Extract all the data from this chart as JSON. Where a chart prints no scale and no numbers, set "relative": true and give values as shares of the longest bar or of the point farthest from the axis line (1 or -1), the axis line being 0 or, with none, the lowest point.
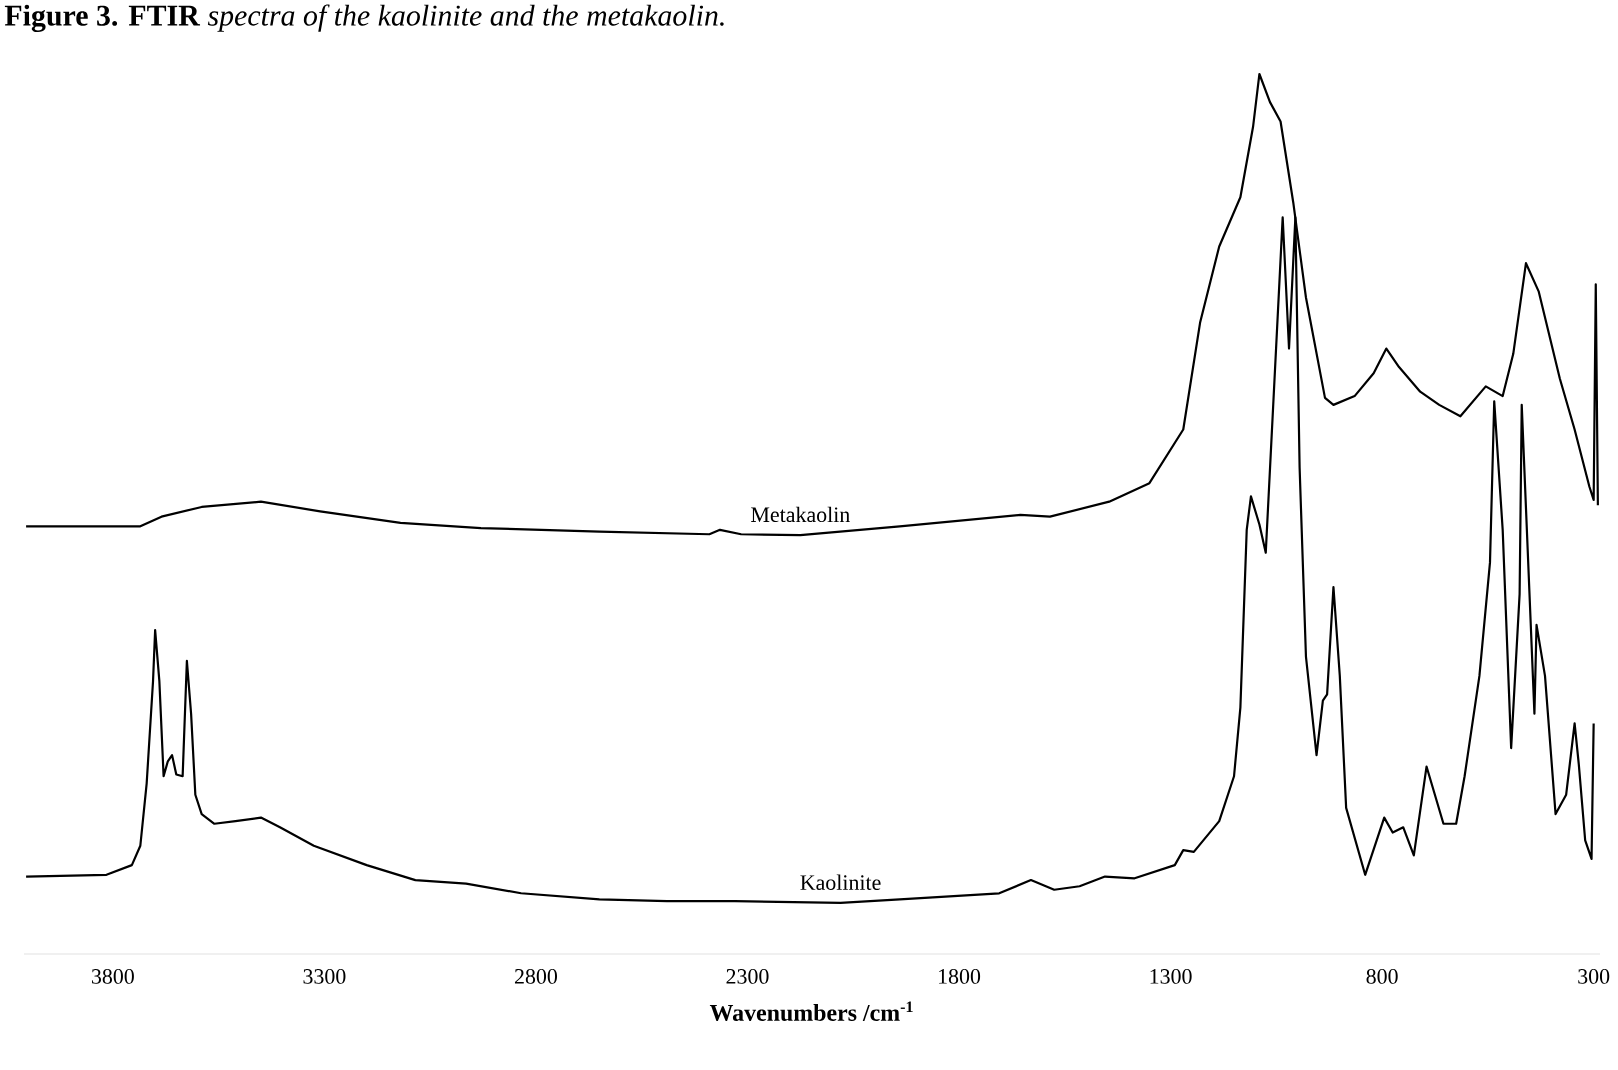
{
  "chart_data": {
    "type": "line",
    "title": "**Figure 3. FTIR** *spectra of the kaolinite and the metakaolin.*",
    "xlabel": "Wavenumbers /cm$^{-1}$",
    "xlim": [
      4010,
      285
    ],
    "xticks": [
      3800,
      3300,
      2800,
      2300,
      1800,
      1300,
      800,
      300
    ],
    "relative": true,
    "series": [
      {
        "name": "Metakaolin",
        "color": "#000000",
        "x": [
          4005,
          3735,
          3685,
          3590,
          3450,
          3310,
          3120,
          2930,
          2650,
          2390,
          2365,
          2315,
          2175,
          1940,
          1655,
          1585,
          1445,
          1350,
          1270,
          1230,
          1185,
          1135,
          1105,
          1090,
          1065,
          1040,
          1010,
          980,
          935,
          915,
          865,
          820,
          790,
          760,
          710,
          665,
          615,
          555,
          515,
          490,
          460,
          430,
          380,
          345,
          310,
          300,
          295,
          290
        ],
        "values": [
          0.486,
          0.486,
          0.497,
          0.508,
          0.514,
          0.503,
          0.49,
          0.484,
          0.48,
          0.477,
          0.482,
          0.477,
          0.476,
          0.486,
          0.499,
          0.497,
          0.514,
          0.535,
          0.596,
          0.718,
          0.804,
          0.86,
          0.94,
          1.0,
          0.968,
          0.946,
          0.854,
          0.746,
          0.632,
          0.624,
          0.634,
          0.66,
          0.688,
          0.667,
          0.639,
          0.624,
          0.611,
          0.645,
          0.634,
          0.682,
          0.785,
          0.753,
          0.654,
          0.596,
          0.531,
          0.516,
          0.761,
          0.51
        ]
      },
      {
        "name": "Kaolinite",
        "color": "#000000",
        "x": [
          4005,
          3815,
          3755,
          3735,
          3720,
          3705,
          3700,
          3690,
          3680,
          3670,
          3660,
          3650,
          3635,
          3625,
          3615,
          3605,
          3590,
          3560,
          3510,
          3450,
          3405,
          3325,
          3200,
          3085,
          2965,
          2835,
          2650,
          2490,
          2330,
          2080,
          1940,
          1705,
          1630,
          1575,
          1515,
          1455,
          1385,
          1290,
          1270,
          1245,
          1185,
          1150,
          1135,
          1120,
          1110,
          1090,
          1075,
          1035,
          1020,
          1005,
          995,
          980,
          955,
          940,
          930,
          915,
          900,
          885,
          840,
          795,
          775,
          750,
          725,
          695,
          655,
          625,
          605,
          570,
          545,
          535,
          515,
          495,
          475,
          470,
          440,
          435,
          415,
          390,
          365,
          345,
          335,
          320,
          305,
          300
        ],
        "values": [
          0.088,
          0.09,
          0.101,
          0.123,
          0.194,
          0.31,
          0.368,
          0.31,
          0.202,
          0.219,
          0.226,
          0.204,
          0.202,
          0.333,
          0.273,
          0.181,
          0.159,
          0.148,
          0.151,
          0.155,
          0.144,
          0.123,
          0.101,
          0.084,
          0.08,
          0.069,
          0.062,
          0.06,
          0.06,
          0.058,
          0.062,
          0.069,
          0.084,
          0.073,
          0.077,
          0.088,
          0.086,
          0.101,
          0.118,
          0.116,
          0.151,
          0.202,
          0.28,
          0.482,
          0.52,
          0.488,
          0.456,
          0.837,
          0.688,
          0.837,
          0.553,
          0.338,
          0.226,
          0.288,
          0.295,
          0.417,
          0.316,
          0.166,
          0.09,
          0.155,
          0.138,
          0.144,
          0.112,
          0.213,
          0.148,
          0.148,
          0.202,
          0.316,
          0.445,
          0.628,
          0.482,
          0.234,
          0.409,
          0.624,
          0.273,
          0.374,
          0.316,
          0.159,
          0.181,
          0.262,
          0.215,
          0.129,
          0.108,
          0.262
        ]
      }
    ]
  }
}
